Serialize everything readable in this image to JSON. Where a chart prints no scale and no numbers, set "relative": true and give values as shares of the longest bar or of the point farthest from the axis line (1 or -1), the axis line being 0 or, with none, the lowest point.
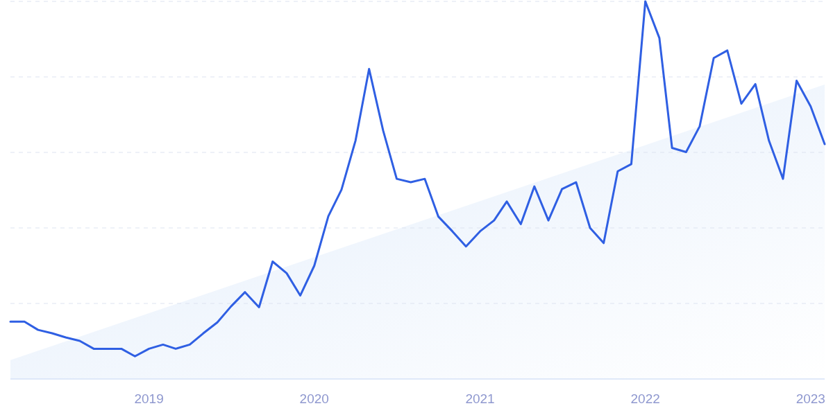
{
  "chart_data": {
    "type": "line",
    "relative": true,
    "grid": "y",
    "xlim": [
      "2018-03",
      "2023-02"
    ],
    "xticks": [
      "2019",
      "2020",
      "2021",
      "2022",
      "2023"
    ],
    "series": [
      {
        "type": "area",
        "color": "#e2edfb",
        "x": [
          "2018-03",
          "2023-02"
        ],
        "values": [
          0.05,
          0.78
        ]
      },
      {
        "color": "#2f5fe3",
        "x": [
          "2018-03",
          "2018-04",
          "2018-05",
          "2018-06",
          "2018-07",
          "2018-08",
          "2018-09",
          "2018-10",
          "2018-11",
          "2018-12",
          "2019-01",
          "2019-02",
          "2019-03",
          "2019-04",
          "2019-05",
          "2019-06",
          "2019-07",
          "2019-08",
          "2019-09",
          "2019-10",
          "2019-11",
          "2019-12",
          "2020-01",
          "2020-02",
          "2020-03",
          "2020-04",
          "2020-05",
          "2020-06",
          "2020-07",
          "2020-08",
          "2020-09",
          "2020-10",
          "2020-11",
          "2020-12",
          "2021-01",
          "2021-02",
          "2021-03",
          "2021-04",
          "2021-05",
          "2021-06",
          "2021-07",
          "2021-08",
          "2021-09",
          "2021-10",
          "2021-11",
          "2021-12",
          "2022-01",
          "2022-02",
          "2022-03",
          "2022-04",
          "2022-05",
          "2022-06",
          "2022-07",
          "2022-08",
          "2022-09",
          "2022-10",
          "2022-11",
          "2022-12",
          "2023-01",
          "2023-02"
        ],
        "values": [
          0.152,
          0.152,
          0.13,
          0.121,
          0.11,
          0.101,
          0.08,
          0.08,
          0.08,
          0.06,
          0.08,
          0.091,
          0.08,
          0.091,
          0.121,
          0.15,
          0.192,
          0.23,
          0.19,
          0.311,
          0.28,
          0.221,
          0.3,
          0.431,
          0.501,
          0.631,
          0.821,
          0.658,
          0.53,
          0.521,
          0.53,
          0.43,
          0.391,
          0.351,
          0.391,
          0.42,
          0.47,
          0.41,
          0.51,
          0.42,
          0.503,
          0.521,
          0.4,
          0.36,
          0.55,
          0.569,
          1,
          0.903,
          0.612,
          0.601,
          0.669,
          0.85,
          0.87,
          0.729,
          0.781,
          0.631,
          0.53,
          0.79,
          0.722,
          0.622
        ]
      }
    ],
    "line_style": "solid",
    "marker": "none"
  }
}
